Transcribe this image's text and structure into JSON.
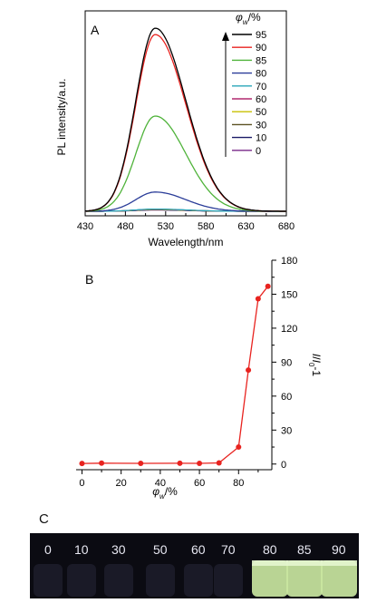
{
  "chart_data": [
    {
      "panel_label": "A",
      "type": "line",
      "xlabel": "Wavelength/nm",
      "ylabel": "PL intensity/a.u.",
      "xlim": [
        430,
        680
      ],
      "x_ticks": [
        "430",
        "480",
        "530",
        "580",
        "630",
        "680"
      ],
      "y_ticks_labeled": false,
      "legend_title_base": "φ",
      "legend_title_sub": "w",
      "legend_title_unit": "/%",
      "legend_placement": "top-right",
      "legend_arrow": "up",
      "peak_wavelength": 517,
      "series": [
        {
          "name": "95",
          "color": "#000000",
          "peak": 1.0
        },
        {
          "name": "90",
          "color": "#e8231f",
          "peak": 0.965
        },
        {
          "name": "85",
          "color": "#4fb33a",
          "peak": 0.52
        },
        {
          "name": "80",
          "color": "#2b3d99",
          "peak": 0.105
        },
        {
          "name": "70",
          "color": "#2aa6b8",
          "peak": 0.012
        },
        {
          "name": "60",
          "color": "#b0286f",
          "peak": 0.011
        },
        {
          "name": "50",
          "color": "#c8c000",
          "peak": 0.01
        },
        {
          "name": "30",
          "color": "#5b5020",
          "peak": 0.009
        },
        {
          "name": "10",
          "color": "#1a1a66",
          "peak": 0.008
        },
        {
          "name": "0",
          "color": "#7a2a8a",
          "peak": 0.007
        }
      ]
    },
    {
      "panel_label": "B",
      "type": "line",
      "xlabel_base": "φ",
      "xlabel_sub": "w",
      "xlabel_unit": "/%",
      "ylabel_parts": [
        "I",
        "/",
        "I",
        "0",
        "-1"
      ],
      "xlim": [
        -3,
        97
      ],
      "ylim": [
        -5,
        180
      ],
      "x_ticks": [
        0,
        20,
        40,
        60,
        80
      ],
      "y_ticks": [
        0,
        30,
        60,
        90,
        120,
        150,
        180
      ],
      "y_axis_side": "right",
      "color": "#e8231f",
      "x": [
        0,
        10,
        30,
        50,
        60,
        70,
        80,
        85,
        90,
        95
      ],
      "y": [
        0.5,
        0.8,
        0.6,
        0.7,
        0.6,
        1.0,
        15,
        83,
        146,
        157
      ]
    }
  ],
  "photo": {
    "panel_label": "C",
    "vials": [
      "0",
      "10",
      "30",
      "50",
      "60",
      "70",
      "80",
      "85",
      "90"
    ],
    "glowing": [
      false,
      false,
      false,
      false,
      false,
      false,
      true,
      true,
      true
    ],
    "glow_color": "#c9e6a0"
  }
}
